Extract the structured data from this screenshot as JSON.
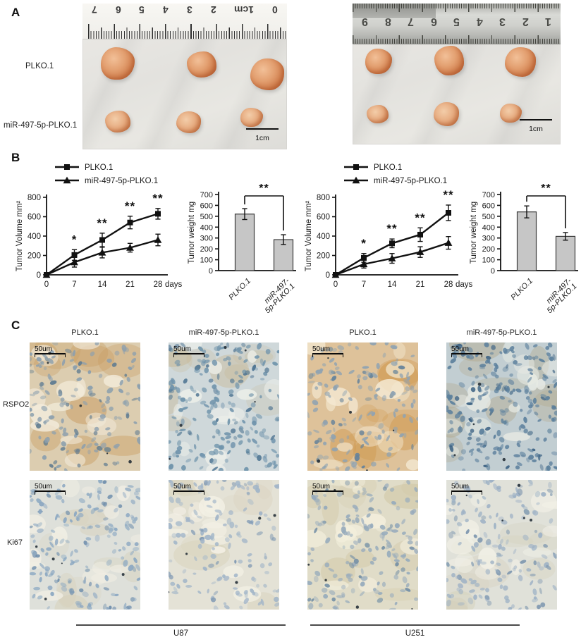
{
  "panels": {
    "a": "A",
    "b": "B",
    "c": "C"
  },
  "panel_a": {
    "row_labels": [
      "PLKO.1",
      "miR-497-5p-PLKO.1"
    ],
    "scale_bar_label": "1cm",
    "left_photo": {
      "ruler_numbers": [
        "7",
        "6",
        "5",
        "4",
        "3",
        "2",
        "1cm",
        "0"
      ],
      "tumors_top": [
        [
          26,
          62,
          48,
          46
        ],
        [
          148,
          68,
          42,
          37
        ],
        [
          238,
          78,
          48,
          45
        ]
      ],
      "tumors_bottom": [
        [
          32,
          152,
          36,
          31
        ],
        [
          133,
          153,
          35,
          31
        ],
        [
          224,
          148,
          32,
          27
        ]
      ]
    },
    "right_photo": {
      "ruler_numbers": [
        "9",
        "8",
        "7",
        "6",
        "5",
        "4",
        "3",
        "2",
        "1"
      ],
      "tumors_top": [
        [
          18,
          64,
          38,
          36
        ],
        [
          116,
          60,
          42,
          42
        ],
        [
          216,
          62,
          44,
          42
        ]
      ],
      "tumors_bottom": [
        [
          20,
          144,
          31,
          26
        ],
        [
          115,
          140,
          36,
          34
        ],
        [
          209,
          142,
          31,
          27
        ]
      ]
    }
  },
  "chart_data": [
    {
      "id": "u87-volume",
      "type": "line",
      "cell_line": "U87",
      "xlabel": "days",
      "ylabel": "Tumor Volume mm²",
      "x": [
        0,
        7,
        14,
        21,
        28
      ],
      "ylim": [
        0,
        800
      ],
      "yticks": [
        0,
        200,
        400,
        600,
        800
      ],
      "series": [
        {
          "name": "PLKO.1",
          "marker": "square",
          "values": [
            0,
            205,
            360,
            540,
            630
          ],
          "errors": [
            8,
            55,
            70,
            65,
            55
          ]
        },
        {
          "name": "miR-497-5p-PLKO.1",
          "marker": "triangle",
          "values": [
            0,
            130,
            230,
            280,
            360
          ],
          "errors": [
            8,
            50,
            55,
            45,
            60
          ]
        }
      ],
      "annotations": [
        {
          "x": 7,
          "text": "*"
        },
        {
          "x": 14,
          "text": "**"
        },
        {
          "x": 21,
          "text": "**"
        },
        {
          "x": 28,
          "text": "**"
        }
      ],
      "legend_position": "top-left",
      "grid": false
    },
    {
      "id": "u87-weight",
      "type": "bar",
      "cell_line": "U87",
      "ylabel": "Tumor weight mg",
      "ylim": [
        0,
        700
      ],
      "yticks": [
        0,
        100,
        200,
        300,
        400,
        500,
        600,
        700
      ],
      "categories": [
        [
          "PLKO.1"
        ],
        [
          "miR-497-",
          "5p-PLKO.1"
        ]
      ],
      "values": [
        520,
        285
      ],
      "errors": [
        50,
        45
      ],
      "significance": "**",
      "bar_color": "#c6c6c6",
      "grid": false
    },
    {
      "id": "u251-volume",
      "type": "line",
      "cell_line": "U251",
      "xlabel": "days",
      "ylabel": "Tumor Volume mm²",
      "x": [
        0,
        7,
        14,
        21,
        28
      ],
      "ylim": [
        0,
        800
      ],
      "yticks": [
        0,
        200,
        400,
        600,
        800
      ],
      "series": [
        {
          "name": "PLKO.1",
          "marker": "square",
          "values": [
            0,
            175,
            325,
            415,
            640
          ],
          "errors": [
            8,
            45,
            45,
            70,
            80
          ]
        },
        {
          "name": "miR-497-5p-PLKO.1",
          "marker": "triangle",
          "values": [
            0,
            110,
            170,
            235,
            330
          ],
          "errors": [
            8,
            40,
            50,
            55,
            65
          ]
        }
      ],
      "annotations": [
        {
          "x": 7,
          "text": "*"
        },
        {
          "x": 14,
          "text": "**"
        },
        {
          "x": 21,
          "text": "**"
        },
        {
          "x": 28,
          "text": "**"
        }
      ],
      "legend_position": "top-left",
      "grid": false
    },
    {
      "id": "u251-weight",
      "type": "bar",
      "cell_line": "U251",
      "ylabel": "Tumor weight mg",
      "ylim": [
        0,
        700
      ],
      "yticks": [
        0,
        100,
        200,
        300,
        400,
        500,
        600,
        700
      ],
      "categories": [
        [
          "PLKO.1"
        ],
        [
          "miR-497-",
          "5p-PLKO.1"
        ]
      ],
      "values": [
        540,
        315
      ],
      "errors": [
        55,
        35
      ],
      "significance": "**",
      "bar_color": "#c6c6c6",
      "grid": false
    }
  ],
  "panel_c": {
    "column_headers": [
      "PLKO.1",
      "miR-497-5p-PLKO.1",
      "PLKO.1",
      "miR-497-5p-PLKO.1"
    ],
    "row_labels": [
      "RSPO2",
      "Ki67"
    ],
    "scale_bar_label": "50um",
    "group_labels": [
      "U87",
      "U251"
    ],
    "tiles": [
      {
        "name": "ihc-rspo2-u87-plko1",
        "seed": 11,
        "base": "#dccdb0",
        "accent": "#c89a5e",
        "light": "#f3ecdc",
        "nucleus": "#8b9fae",
        "nucleus_dark": "#5f7b90",
        "density": 150
      },
      {
        "name": "ihc-rspo2-u87-mir497",
        "seed": 22,
        "base": "#cfd8da",
        "accent": "#c8b894",
        "light": "#eef0ea",
        "nucleus": "#6f93ab",
        "nucleus_dark": "#49708f",
        "density": 195
      },
      {
        "name": "ihc-rspo2-u251-plko1",
        "seed": 33,
        "base": "#dec29a",
        "accent": "#d09a52",
        "light": "#f4e9d2",
        "nucleus": "#8fa3b2",
        "nucleus_dark": "#66839a",
        "density": 150
      },
      {
        "name": "ihc-rspo2-u251-mir497",
        "seed": 44,
        "base": "#c2ced2",
        "accent": "#b3ab90",
        "light": "#e7eae3",
        "nucleus": "#5b7f9c",
        "nucleus_dark": "#3c6283",
        "density": 215
      },
      {
        "name": "ihc-ki67-u87-plko1",
        "seed": 55,
        "base": "#dee0da",
        "accent": "#d6cfb8",
        "light": "#f2efe4",
        "nucleus": "#8ca8c2",
        "nucleus_dark": "#6c8cab",
        "density": 175
      },
      {
        "name": "ihc-ki67-u87-mir497",
        "seed": 66,
        "base": "#e4e2d6",
        "accent": "#d9d3bd",
        "light": "#f4f1e6",
        "nucleus": "#a0b4c8",
        "nucleus_dark": "#8099b3",
        "density": 150
      },
      {
        "name": "ihc-ki67-u251-plko1",
        "seed": 77,
        "base": "#e0dcc8",
        "accent": "#cfc4a0",
        "light": "#f3efdd",
        "nucleus": "#97abbc",
        "nucleus_dark": "#7590a6",
        "density": 165
      },
      {
        "name": "ihc-ki67-u251-mir497",
        "seed": 88,
        "base": "#e0e1d9",
        "accent": "#d3cfba",
        "light": "#f1f0e6",
        "nucleus": "#9db1c5",
        "nucleus_dark": "#7e97af",
        "density": 160
      }
    ]
  }
}
